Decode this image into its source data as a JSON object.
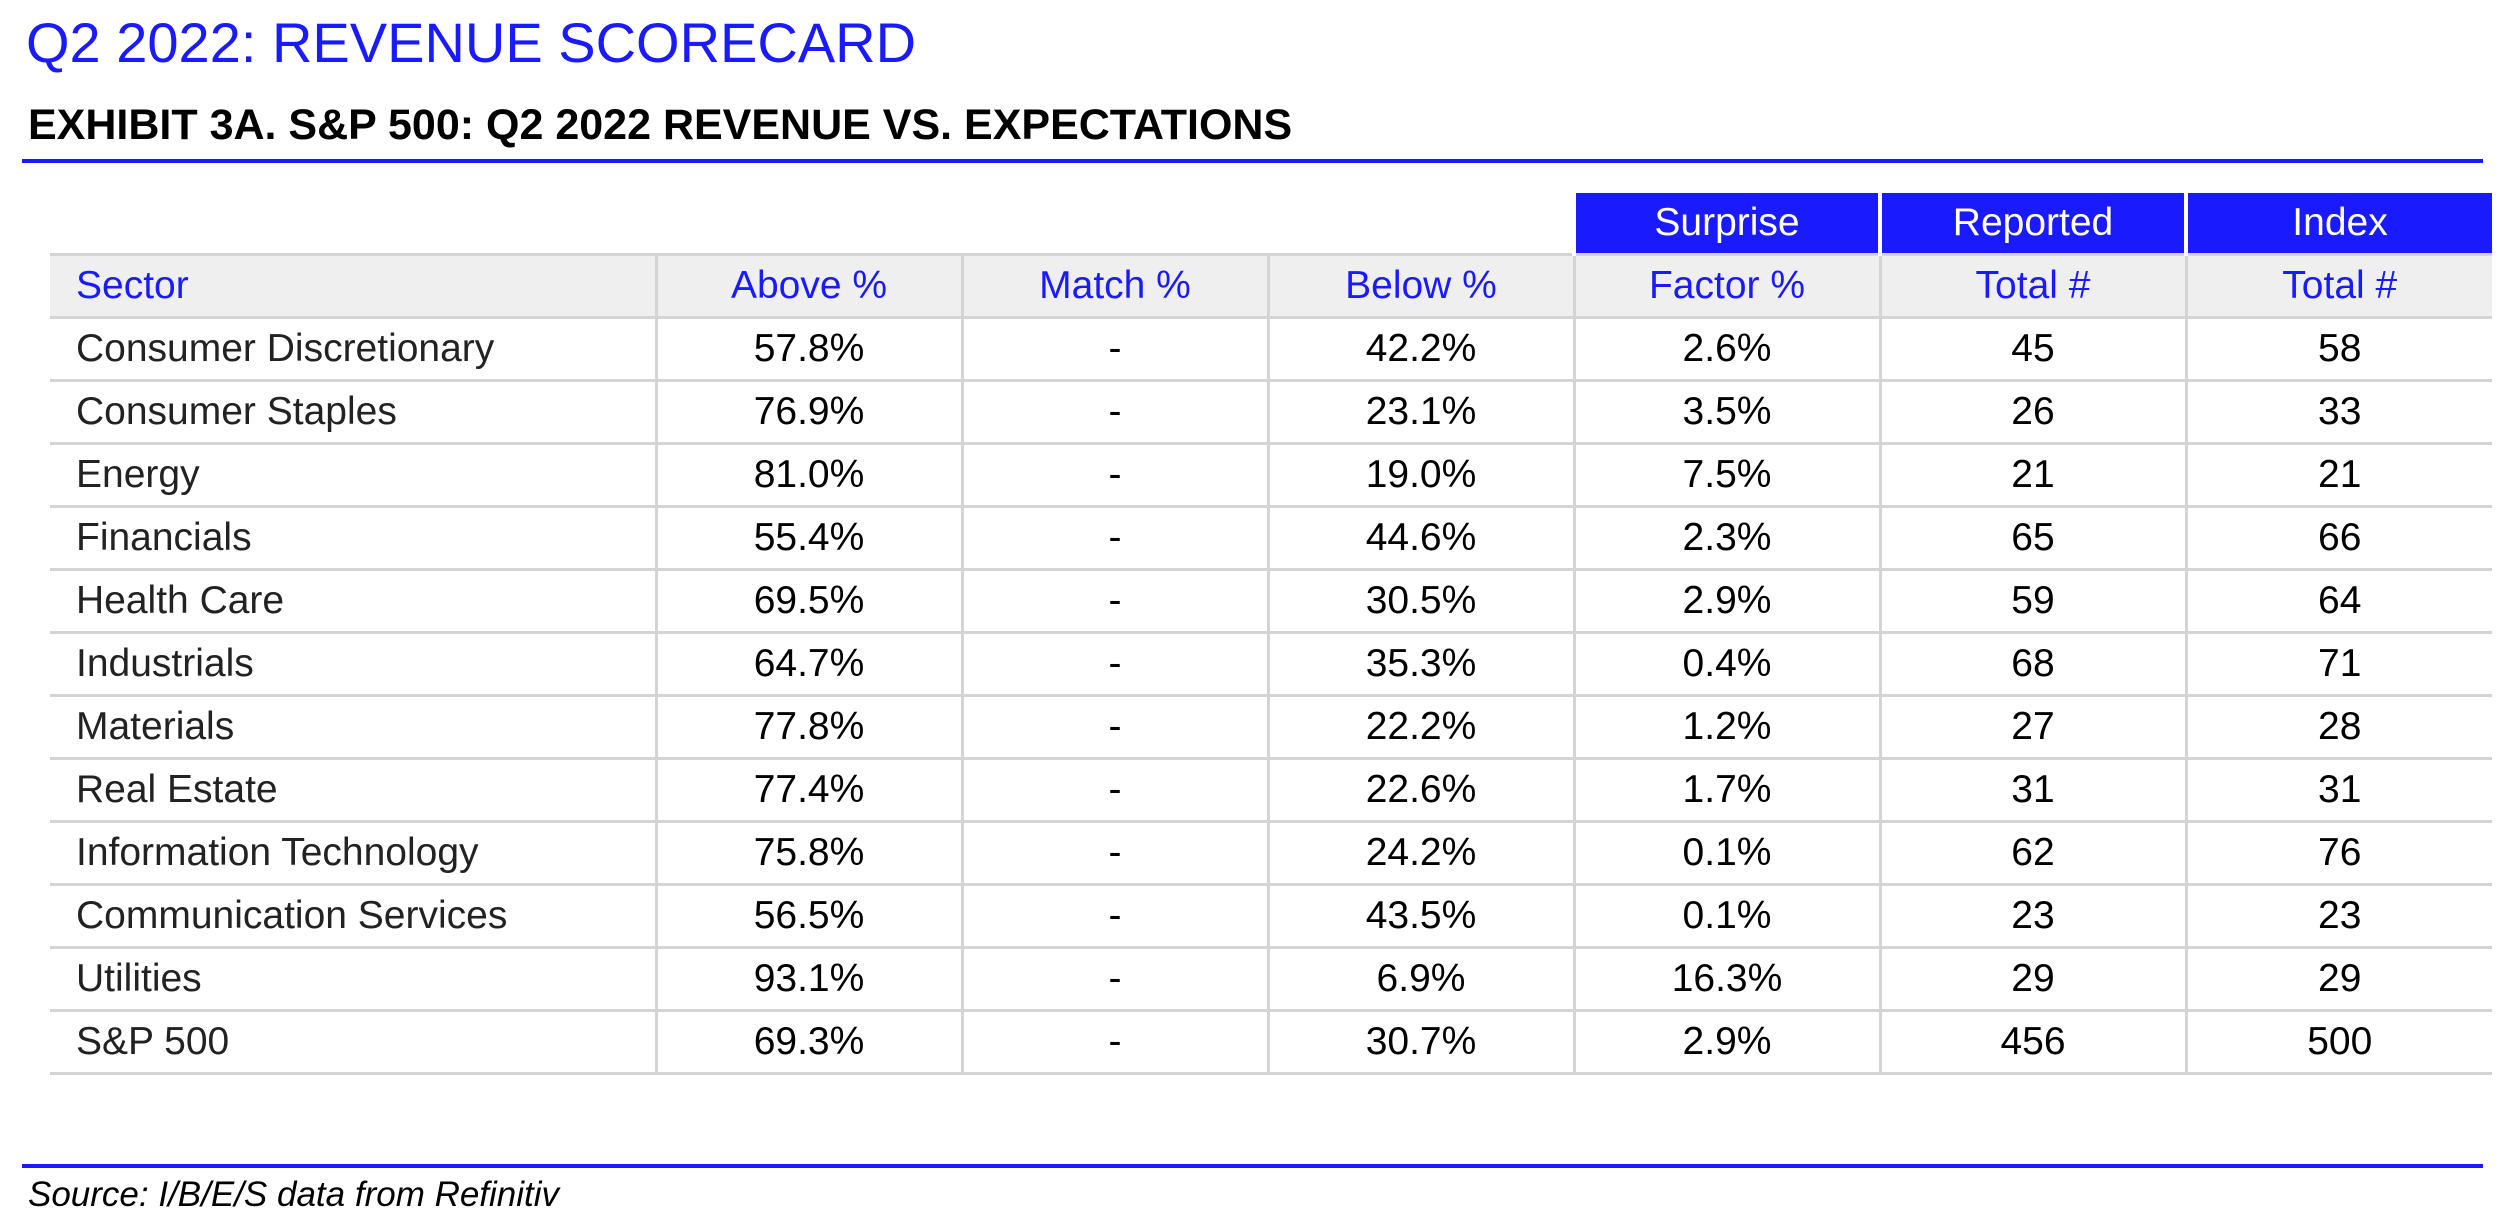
{
  "page": {
    "title": "Q2 2022: REVENUE SCORECARD",
    "subtitle": "EXHIBIT 3A.  S&P 500: Q2 2022 REVENUE VS. EXPECTATIONS",
    "source": "Source: I/B/E/S data from Refinitiv"
  },
  "colors": {
    "accent_blue": "#1a1aff",
    "header_bg": "#efefef",
    "grid_line": "#d4d4d4"
  },
  "table": {
    "group_headers": {
      "surprise": "Surprise",
      "reported": "Reported",
      "index": "Index"
    },
    "columns": {
      "sector": "Sector",
      "above": "Above %",
      "match": "Match %",
      "below": "Below %",
      "factor": "Factor %",
      "reported_total": "Total #",
      "index_total": "Total #"
    },
    "rows": [
      {
        "sector": "Consumer Discretionary",
        "above": "57.8%",
        "match": "-",
        "below": "42.2%",
        "factor": "2.6%",
        "reported": "45",
        "index": "58"
      },
      {
        "sector": "Consumer Staples",
        "above": "76.9%",
        "match": "-",
        "below": "23.1%",
        "factor": "3.5%",
        "reported": "26",
        "index": "33"
      },
      {
        "sector": "Energy",
        "above": "81.0%",
        "match": "-",
        "below": "19.0%",
        "factor": "7.5%",
        "reported": "21",
        "index": "21"
      },
      {
        "sector": "Financials",
        "above": "55.4%",
        "match": "-",
        "below": "44.6%",
        "factor": "2.3%",
        "reported": "65",
        "index": "66"
      },
      {
        "sector": "Health Care",
        "above": "69.5%",
        "match": "-",
        "below": "30.5%",
        "factor": "2.9%",
        "reported": "59",
        "index": "64"
      },
      {
        "sector": "Industrials",
        "above": "64.7%",
        "match": "-",
        "below": "35.3%",
        "factor": "0.4%",
        "reported": "68",
        "index": "71"
      },
      {
        "sector": "Materials",
        "above": "77.8%",
        "match": "-",
        "below": "22.2%",
        "factor": "1.2%",
        "reported": "27",
        "index": "28"
      },
      {
        "sector": "Real Estate",
        "above": "77.4%",
        "match": "-",
        "below": "22.6%",
        "factor": "1.7%",
        "reported": "31",
        "index": "31"
      },
      {
        "sector": "Information Technology",
        "above": "75.8%",
        "match": "-",
        "below": "24.2%",
        "factor": "0.1%",
        "reported": "62",
        "index": "76"
      },
      {
        "sector": "Communication Services",
        "above": "56.5%",
        "match": "-",
        "below": "43.5%",
        "factor": "0.1%",
        "reported": "23",
        "index": "23"
      },
      {
        "sector": "Utilities",
        "above": "93.1%",
        "match": "-",
        "below": "6.9%",
        "factor": "16.3%",
        "reported": "29",
        "index": "29"
      },
      {
        "sector": "S&P 500",
        "above": "69.3%",
        "match": "-",
        "below": "30.7%",
        "factor": "2.9%",
        "reported": "456",
        "index": "500"
      }
    ]
  }
}
